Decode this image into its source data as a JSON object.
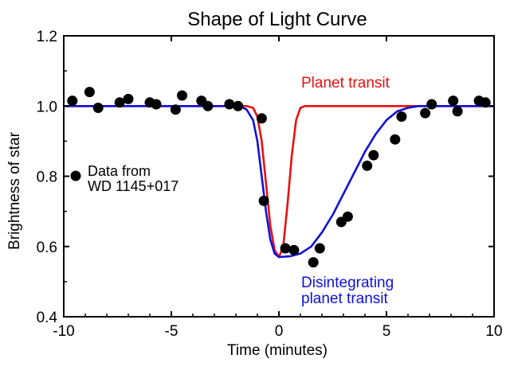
{
  "chart_data": {
    "type": "line+scatter",
    "title": "Shape of Light Curve",
    "xlabel": "Time (minutes)",
    "ylabel": "Brightness of star",
    "xlim": [
      -10,
      10
    ],
    "ylim": [
      0.4,
      1.2
    ],
    "xticks": [
      -10,
      -5,
      0,
      5,
      10
    ],
    "xtick_labels": [
      "-10",
      "-5",
      "0",
      "5",
      "10"
    ],
    "yticks": [
      0.4,
      0.6,
      0.8,
      1.0,
      1.2
    ],
    "ytick_labels": [
      "0.4",
      "0.6",
      "0.8",
      "1.0",
      "1.2"
    ],
    "grid": false,
    "colors": {
      "data": "#000000",
      "planet": "#e8100f",
      "disintegrating": "#1010d8",
      "axes": "#000000"
    },
    "legend": {
      "placement": "left",
      "label_line1": "Data from",
      "label_line2": "WD 1145+017"
    },
    "annotations": [
      {
        "series": "planet",
        "text": "Planet transit"
      },
      {
        "series": "disintegrating",
        "line1": "Disintegrating",
        "line2": "planet transit"
      }
    ],
    "scatter": {
      "name": "Data from WD 1145+017",
      "x": [
        -9.6,
        -8.8,
        -8.4,
        -7.4,
        -7.0,
        -6.0,
        -5.7,
        -4.8,
        -4.5,
        -3.6,
        -3.3,
        -2.3,
        -1.9,
        -0.8,
        -0.7,
        0.3,
        0.7,
        1.6,
        1.9,
        2.9,
        3.2,
        4.1,
        4.4,
        5.4,
        5.7,
        6.8,
        7.1,
        8.1,
        8.3,
        9.3,
        9.6
      ],
      "y": [
        1.015,
        1.04,
        0.995,
        1.01,
        1.02,
        1.01,
        1.005,
        0.99,
        1.03,
        1.015,
        1.0,
        1.005,
        1.0,
        0.965,
        0.73,
        0.595,
        0.59,
        0.555,
        0.595,
        0.67,
        0.685,
        0.83,
        0.86,
        0.905,
        0.97,
        0.98,
        1.005,
        1.015,
        0.985,
        1.015,
        1.01
      ]
    },
    "series": [
      {
        "name": "Planet transit",
        "x": [
          -10,
          -1.5,
          -1.2,
          -1.0,
          -0.8,
          -0.6,
          -0.4,
          -0.2,
          0,
          0.2,
          0.4,
          0.6,
          0.8,
          1.0,
          1.2,
          1.5,
          10
        ],
        "y": [
          1.0,
          1.0,
          0.995,
          0.97,
          0.9,
          0.78,
          0.66,
          0.59,
          0.57,
          0.6,
          0.72,
          0.86,
          0.96,
          0.995,
          1.0,
          1.0,
          1.0
        ]
      },
      {
        "name": "Disintegrating planet transit",
        "x": [
          -10,
          -1.8,
          -1.5,
          -1.2,
          -1.0,
          -0.8,
          -0.6,
          -0.4,
          -0.2,
          0,
          0.5,
          1.0,
          1.5,
          2.0,
          2.5,
          3.0,
          3.5,
          4.0,
          4.5,
          5.0,
          5.5,
          6.0,
          6.5,
          7.0,
          10
        ],
        "y": [
          1.0,
          1.0,
          0.99,
          0.96,
          0.9,
          0.8,
          0.7,
          0.62,
          0.58,
          0.57,
          0.572,
          0.58,
          0.6,
          0.64,
          0.69,
          0.75,
          0.81,
          0.87,
          0.92,
          0.96,
          0.985,
          0.995,
          1.0,
          1.0,
          1.0
        ]
      }
    ]
  }
}
